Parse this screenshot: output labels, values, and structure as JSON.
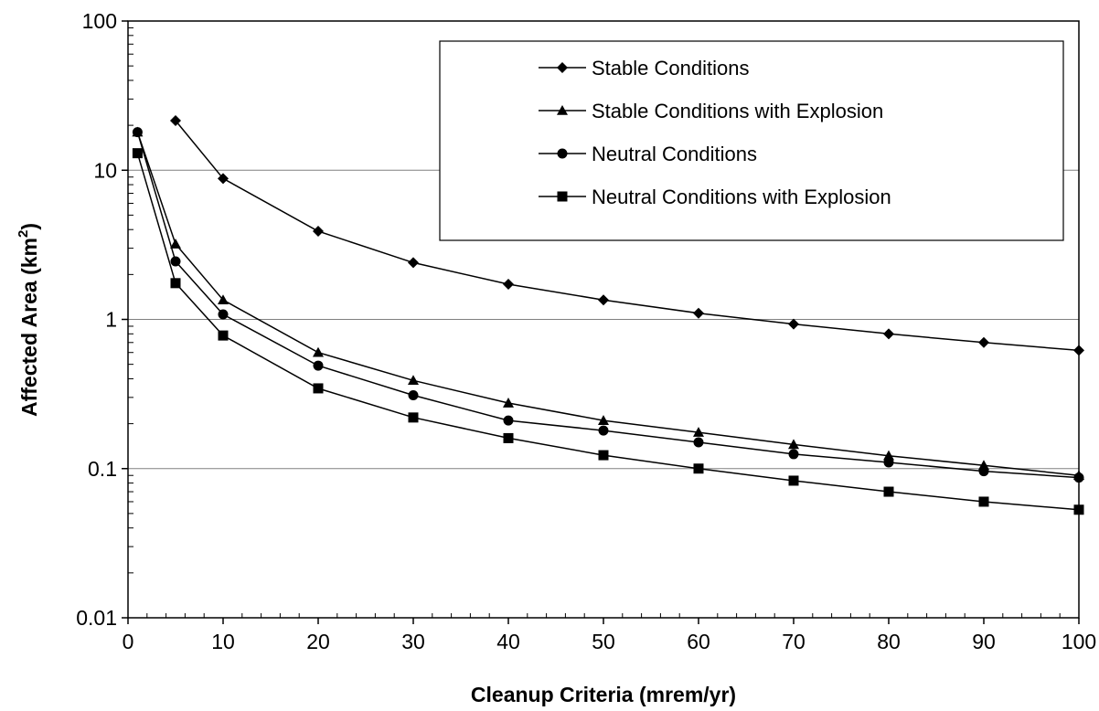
{
  "chart_data": {
    "type": "line",
    "title": "",
    "xlabel": "Cleanup Criteria (mrem/yr)",
    "ylabel_prefix": "Affected Area (km",
    "ylabel_sup": "2",
    "ylabel_suffix": ")",
    "yscale": "log",
    "xlim": [
      0,
      100
    ],
    "ylim": [
      0.01,
      100
    ],
    "xticks": [
      0,
      10,
      20,
      30,
      40,
      50,
      60,
      70,
      80,
      90,
      100
    ],
    "xtick_labels": [
      "0",
      "10",
      "20",
      "30",
      "40",
      "50",
      "60",
      "70",
      "80",
      "90",
      "100"
    ],
    "yticks": [
      0.01,
      0.1,
      1,
      10,
      100
    ],
    "ytick_labels": [
      "0.01",
      "0.1",
      "1",
      "10",
      "100"
    ],
    "grid": "horizontal major",
    "legend_position": "top-right",
    "series": [
      {
        "name": "Stable Conditions",
        "marker": "diamond",
        "color": "#000000",
        "x": [
          5,
          10,
          20,
          30,
          40,
          50,
          60,
          70,
          80,
          90,
          100
        ],
        "y": [
          21.5,
          8.8,
          3.9,
          2.4,
          1.72,
          1.35,
          1.1,
          0.93,
          0.8,
          0.7,
          0.62
        ]
      },
      {
        "name": "Stable Conditions with Explosion",
        "marker": "triangle",
        "color": "#000000",
        "x": [
          1,
          5,
          10,
          20,
          30,
          40,
          50,
          60,
          70,
          80,
          90,
          100
        ],
        "y": [
          18,
          3.2,
          1.35,
          0.6,
          0.39,
          0.275,
          0.21,
          0.175,
          0.145,
          0.122,
          0.105,
          0.09
        ]
      },
      {
        "name": "Neutral Conditions",
        "marker": "circle",
        "color": "#000000",
        "x": [
          1,
          5,
          10,
          20,
          30,
          40,
          50,
          60,
          70,
          80,
          90,
          100
        ],
        "y": [
          18,
          2.45,
          1.08,
          0.49,
          0.31,
          0.21,
          0.18,
          0.15,
          0.125,
          0.11,
          0.096,
          0.087
        ]
      },
      {
        "name": "Neutral Conditions with Explosion",
        "marker": "square",
        "color": "#000000",
        "x": [
          1,
          5,
          10,
          20,
          30,
          40,
          50,
          60,
          70,
          80,
          90,
          100
        ],
        "y": [
          13,
          1.75,
          0.78,
          0.345,
          0.22,
          0.16,
          0.123,
          0.1,
          0.083,
          0.07,
          0.06,
          0.053
        ]
      }
    ]
  }
}
